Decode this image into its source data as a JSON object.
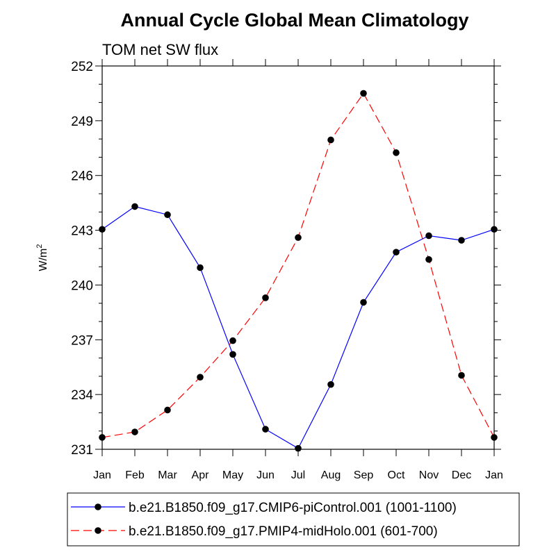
{
  "chart_data": {
    "type": "line",
    "title": "Annual Cycle Global Mean Climatology",
    "subtitle": "TOM net SW flux",
    "ylabel_main": "W/m",
    "ylabel_sup": "2",
    "xlabel": "",
    "categories": [
      "Jan",
      "Feb",
      "Mar",
      "Apr",
      "May",
      "Jun",
      "Jul",
      "Aug",
      "Sep",
      "Oct",
      "Nov",
      "Dec",
      "Jan"
    ],
    "ylim": [
      231,
      252
    ],
    "yticks": [
      231,
      234,
      237,
      240,
      243,
      246,
      249,
      252
    ],
    "grid": false,
    "legend_position": "bottom",
    "series": [
      {
        "name": "b.e21.B1850.f09_g17.CMIP6-piControl.001 (1001-1100)",
        "color": "#0000ff",
        "dash": "solid",
        "values": [
          243.05,
          244.3,
          243.85,
          240.95,
          236.2,
          232.1,
          231.05,
          234.55,
          239.05,
          241.8,
          242.7,
          242.45,
          243.05
        ]
      },
      {
        "name": "b.e21.B1850.f09_g17.PMIP4-midHolo.001 (601-700)",
        "color": "#ff0000",
        "dash": "dashed",
        "values": [
          231.65,
          231.95,
          233.15,
          234.95,
          236.95,
          239.3,
          242.6,
          247.95,
          250.5,
          247.25,
          241.4,
          235.05,
          231.65
        ]
      }
    ]
  }
}
